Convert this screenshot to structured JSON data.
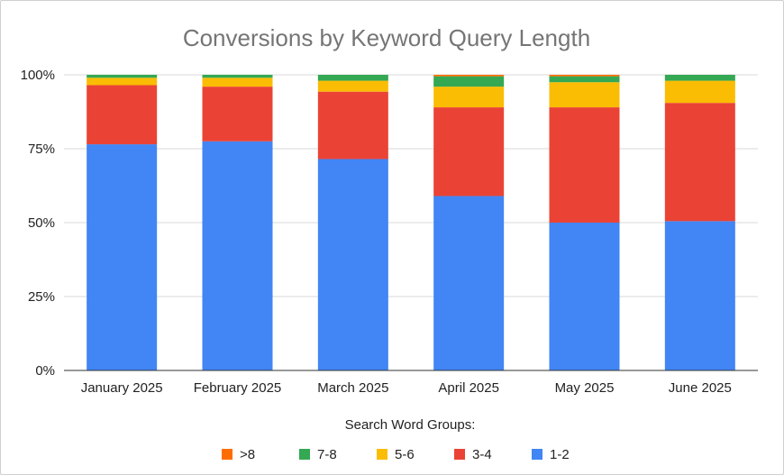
{
  "chart_data": {
    "type": "bar",
    "stacked": true,
    "normalized": true,
    "title": "Conversions by Keyword Query Length",
    "xlabel": "",
    "ylabel": "",
    "ylim": [
      0,
      100
    ],
    "yticks": [
      "0%",
      "25%",
      "50%",
      "75%",
      "100%"
    ],
    "categories": [
      "January 2025",
      "February 2025",
      "March 2025",
      "April 2025",
      "May 2025",
      "June 2025"
    ],
    "series": [
      {
        "name": "1-2",
        "color": "#4285f4",
        "values": [
          76.5,
          77.5,
          71.5,
          59.0,
          50.0,
          50.5
        ]
      },
      {
        "name": "3-4",
        "color": "#ea4335",
        "values": [
          20.0,
          18.5,
          22.8,
          30.0,
          39.0,
          40.0
        ]
      },
      {
        "name": "5-6",
        "color": "#fbbc04",
        "values": [
          2.5,
          3.0,
          3.7,
          7.0,
          8.5,
          7.5
        ]
      },
      {
        "name": "7-8",
        "color": "#34a853",
        "values": [
          1.0,
          1.0,
          2.0,
          3.5,
          2.0,
          2.0
        ]
      },
      {
        "name": ">8",
        "color": "#ff6d01",
        "values": [
          0.0,
          0.0,
          0.0,
          0.5,
          0.5,
          0.0
        ]
      }
    ],
    "legend": {
      "title": "Search Word Groups:",
      "position": "bottom",
      "order": [
        ">8",
        "7-8",
        "5-6",
        "3-4",
        "1-2"
      ]
    },
    "grid": true
  }
}
